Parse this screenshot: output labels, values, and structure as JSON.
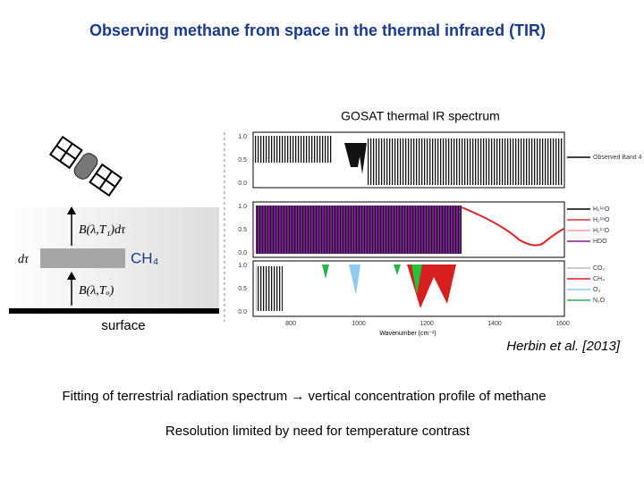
{
  "title": "Observing methane from space in the thermal infrared (TIR)",
  "figure": {
    "caption": "GOSAT thermal IR spectrum",
    "panels": [
      {
        "yticks": [
          "1.0",
          "0.5",
          "0.0"
        ],
        "legend": [
          "Observed Band 4"
        ]
      },
      {
        "yticks": [
          "1.0",
          "0.5",
          "0.0"
        ],
        "legend": [
          "H₂¹⁶O",
          "H₂¹⁸O",
          "H₂¹⁷O",
          "HDO"
        ]
      },
      {
        "yticks": [
          "1.0",
          "0.5",
          "0.0"
        ],
        "legend": [
          "CO₂",
          "CH₄",
          "O₃",
          "N₂O"
        ]
      }
    ],
    "xticks": [
      "800",
      "1000",
      "1200",
      "1400",
      "1600"
    ],
    "xlabel": "Wavenumber (cm⁻¹)"
  },
  "diagram": {
    "upper_flux": "B(λ,T₁)dτ",
    "layer": "dτ",
    "gas": "CH₄",
    "lower_flux": "B(λ,Tₒ)",
    "surface": "surface"
  },
  "citation": "Herbin et al. [2013]",
  "notes": [
    "Fitting of terrestrial radiation spectrum → vertical concentration profile of methane",
    "Resolution limited by need for temperature contrast"
  ]
}
